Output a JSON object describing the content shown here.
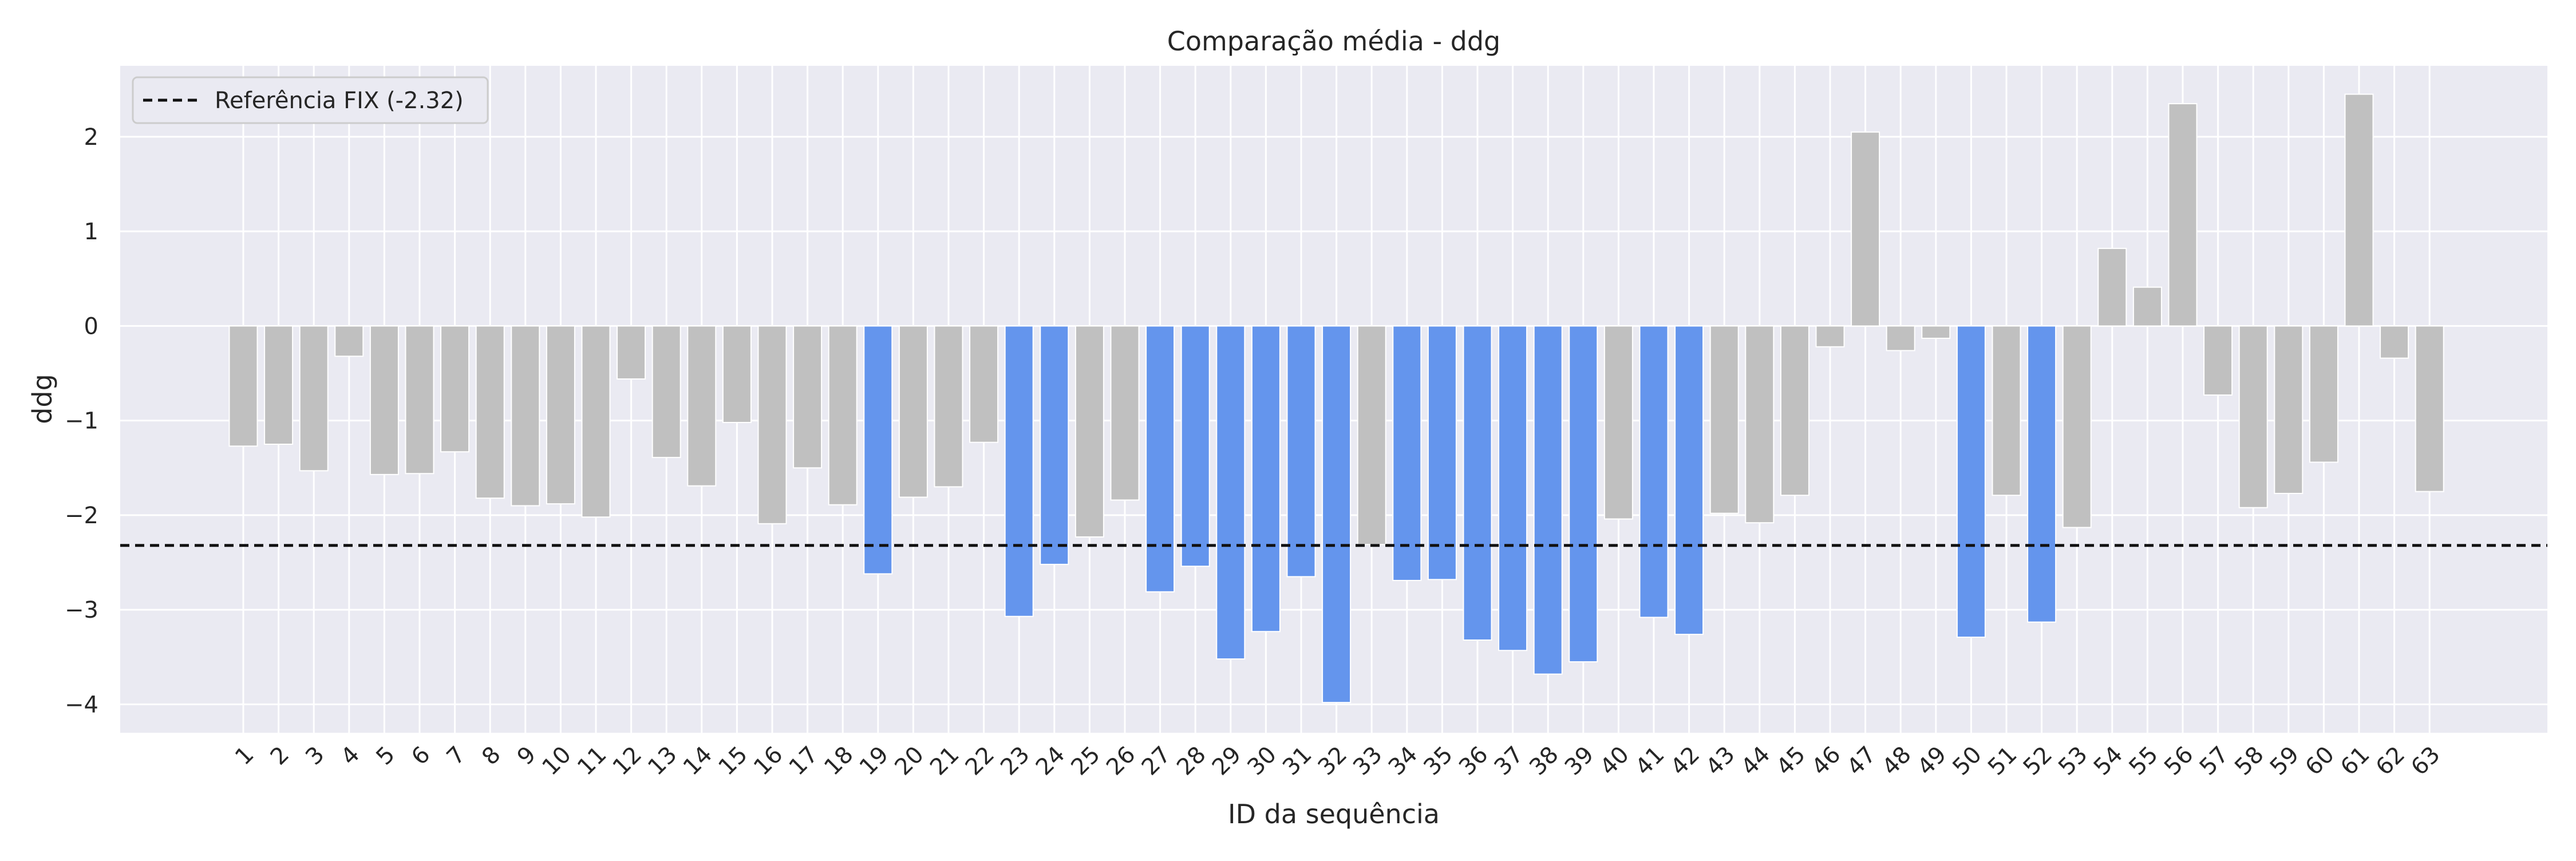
{
  "chart_data": {
    "type": "bar",
    "title": "Comparação média - ddg",
    "xlabel": "ID da sequência",
    "ylabel": "ddg",
    "categories": [
      "1",
      "2",
      "3",
      "4",
      "5",
      "6",
      "7",
      "8",
      "9",
      "10",
      "11",
      "12",
      "13",
      "14",
      "15",
      "16",
      "17",
      "18",
      "19",
      "20",
      "21",
      "22",
      "23",
      "24",
      "25",
      "26",
      "27",
      "28",
      "29",
      "30",
      "31",
      "32",
      "33",
      "34",
      "35",
      "36",
      "37",
      "38",
      "39",
      "40",
      "41",
      "42",
      "43",
      "44",
      "45",
      "46",
      "47",
      "48",
      "49",
      "50",
      "51",
      "52",
      "53",
      "54",
      "55",
      "56",
      "57",
      "58",
      "59",
      "60",
      "61",
      "62",
      "63"
    ],
    "values": [
      -1.27,
      -1.25,
      -1.53,
      -0.32,
      -1.57,
      -1.56,
      -1.33,
      -1.82,
      -1.9,
      -1.88,
      -2.02,
      -0.56,
      -1.39,
      -1.69,
      -1.02,
      -2.09,
      -1.5,
      -1.89,
      -2.62,
      -1.81,
      -1.7,
      -1.23,
      -3.07,
      -2.52,
      -2.23,
      -1.84,
      -2.81,
      -2.54,
      -3.52,
      -3.23,
      -2.65,
      -3.98,
      -2.31,
      -2.69,
      -2.68,
      -3.32,
      -3.43,
      -3.68,
      -3.55,
      -2.04,
      -3.08,
      -3.26,
      -1.98,
      -2.08,
      -1.79,
      -0.22,
      2.05,
      -0.26,
      -0.13,
      -3.29,
      -1.79,
      -3.13,
      -2.13,
      0.82,
      0.41,
      2.35,
      -0.73,
      -1.92,
      -1.77,
      -1.44,
      2.45,
      -0.34,
      -1.75
    ],
    "reference": {
      "value": -2.32,
      "label": "Referência FIX (-2.32)"
    },
    "ylim": [
      -4.3,
      2.75
    ],
    "yticks": [
      -4,
      -3,
      -2,
      -1,
      0,
      1,
      2
    ],
    "grid": true,
    "legend_position": "top-left",
    "colors": {
      "above_reference": "#c0c0c0",
      "below_reference": "#6495ed",
      "reference_line": "#111111",
      "plot_background": "#eaeaf2",
      "grid": "#ffffff"
    }
  }
}
